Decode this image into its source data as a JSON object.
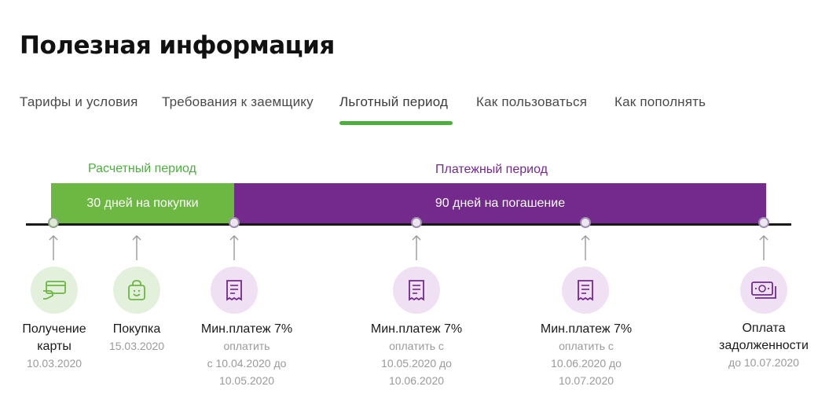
{
  "page_title": "Полезная информация",
  "tabs": [
    {
      "label": "Тарифы и условия"
    },
    {
      "label": "Требования к заемщику"
    },
    {
      "label": "Льготный период",
      "active": true
    },
    {
      "label": "Как пользоваться"
    },
    {
      "label": "Как пополнять"
    }
  ],
  "periods": {
    "settlement": {
      "label": "Расчетный период",
      "bar": "30 дней на покупки"
    },
    "payment": {
      "label": "Платежный период",
      "bar": "90 дней на погашение"
    }
  },
  "milestones": [
    {
      "title1": "Получение",
      "title2": "карты",
      "sub1": "10.03.2020",
      "icon": "card-icon"
    },
    {
      "title1": "Покупка",
      "sub1": "15.03.2020",
      "icon": "shopping-bag-icon"
    },
    {
      "title1": "Мин.платеж 7%",
      "sub1": "оплатить",
      "sub2": "с 10.04.2020 до",
      "sub3": "10.05.2020",
      "icon": "receipt-icon"
    },
    {
      "title1": "Мин.платеж 7%",
      "sub1": "оплатить с",
      "sub2": "10.05.2020 до",
      "sub3": "10.06.2020",
      "icon": "receipt-icon"
    },
    {
      "title1": "Мин.платеж 7%",
      "sub1": "оплатить с",
      "sub2": "10.06.2020 до",
      "sub3": "10.07.2020",
      "icon": "receipt-icon"
    },
    {
      "title1": "Оплата",
      "title2": "задолженности",
      "sub1": "до 10.07.2020",
      "icon": "money-icon"
    }
  ],
  "colors": {
    "green": "#6db743",
    "purple": "#732a8c",
    "tab_underline": "#4caf3d"
  }
}
